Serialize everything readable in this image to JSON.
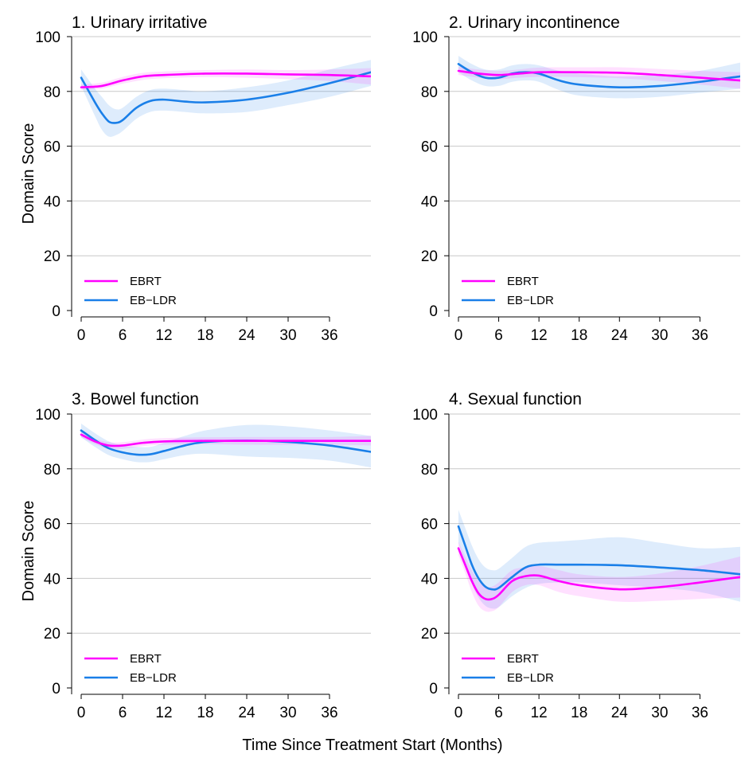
{
  "chart_data": [
    {
      "type": "line",
      "title": "1. Urinary irritative",
      "ylabel": "Domain Score",
      "xlabel": "",
      "ylim": [
        0,
        100
      ],
      "xlim": [
        0,
        42
      ],
      "xticks": [
        0,
        6,
        12,
        18,
        24,
        30,
        36
      ],
      "yticks": [
        0,
        20,
        40,
        60,
        80,
        100
      ],
      "grid": true,
      "legend_position": "bottom-left",
      "series": [
        {
          "name": "EBRT",
          "color": "#ff00ff",
          "x": [
            0,
            3,
            6,
            9,
            12,
            18,
            24,
            30,
            36,
            42
          ],
          "y": [
            81.5,
            82,
            84,
            85.5,
            86,
            86.5,
            86.5,
            86.2,
            86,
            85.5
          ],
          "lower": [
            80.5,
            81,
            82.8,
            84.2,
            84.8,
            85.2,
            85,
            84.5,
            83.8,
            82.5
          ],
          "upper": [
            82.5,
            83.2,
            85.3,
            86.8,
            87.3,
            87.8,
            88,
            87.8,
            88,
            88.5
          ]
        },
        {
          "name": "EB−LDR",
          "color": "#1a7fe8",
          "x": [
            0,
            2,
            3,
            4,
            5,
            6,
            8,
            10,
            12,
            15,
            18,
            24,
            30,
            36,
            42
          ],
          "y": [
            85,
            76,
            72,
            69,
            68.5,
            69.5,
            74,
            76.5,
            77,
            76.3,
            76,
            77,
            79.5,
            83,
            87
          ],
          "lower": [
            82,
            71,
            66,
            63.5,
            64,
            65.5,
            70,
            72.5,
            73,
            72.5,
            72,
            72.5,
            75,
            78,
            82
          ],
          "upper": [
            88,
            81,
            78,
            75,
            73.5,
            74,
            78,
            80.5,
            81,
            80.5,
            80,
            81.5,
            84,
            88,
            91.5
          ]
        }
      ],
      "legend": [
        "EBRT",
        "EB−LDR"
      ]
    },
    {
      "type": "line",
      "title": "2. Urinary incontinence",
      "ylabel": "",
      "xlabel": "",
      "ylim": [
        0,
        100
      ],
      "xlim": [
        0,
        42
      ],
      "xticks": [
        0,
        6,
        12,
        18,
        24,
        30,
        36
      ],
      "yticks": [
        0,
        20,
        40,
        60,
        80,
        100
      ],
      "grid": true,
      "legend_position": "bottom-left",
      "series": [
        {
          "name": "EBRT",
          "color": "#ff00ff",
          "x": [
            0,
            3,
            6,
            9,
            12,
            18,
            24,
            30,
            36,
            42
          ],
          "y": [
            87.5,
            86.5,
            86,
            86.5,
            87,
            87,
            86.8,
            86,
            85,
            84
          ],
          "lower": [
            86,
            85,
            84.5,
            85,
            85.3,
            85.2,
            84.8,
            83.8,
            82.5,
            81
          ],
          "upper": [
            89,
            88,
            87.5,
            88,
            88.7,
            88.8,
            88.8,
            88.2,
            87.5,
            87
          ]
        },
        {
          "name": "EB−LDR",
          "color": "#1a7fe8",
          "x": [
            0,
            2,
            4,
            6,
            8,
            10,
            12,
            15,
            18,
            24,
            30,
            36,
            42
          ],
          "y": [
            90,
            87,
            85,
            85,
            86.5,
            87,
            86.5,
            84,
            82.5,
            81.5,
            82,
            83.5,
            85.5
          ],
          "lower": [
            87,
            84,
            82,
            82,
            83.5,
            84,
            83.5,
            80.5,
            78.5,
            77.5,
            78,
            79.5,
            81
          ],
          "upper": [
            93,
            90,
            88,
            88,
            89.5,
            90,
            89.5,
            87.5,
            86.5,
            85.5,
            86,
            87.5,
            90.5
          ]
        }
      ],
      "legend": [
        "EBRT",
        "EB−LDR"
      ]
    },
    {
      "type": "line",
      "title": "3. Bowel function",
      "ylabel": "Domain Score",
      "xlabel": "",
      "ylim": [
        0,
        100
      ],
      "xlim": [
        0,
        42
      ],
      "xticks": [
        0,
        6,
        12,
        18,
        24,
        30,
        36
      ],
      "yticks": [
        0,
        20,
        40,
        60,
        80,
        100
      ],
      "grid": true,
      "legend_position": "bottom-left",
      "series": [
        {
          "name": "EBRT",
          "color": "#ff00ff",
          "x": [
            0,
            2,
            4,
            6,
            9,
            12,
            18,
            24,
            30,
            36,
            42
          ],
          "y": [
            92.5,
            90,
            88.5,
            88.5,
            89.5,
            90,
            90.2,
            90.2,
            90.2,
            90.2,
            90.2
          ],
          "lower": [
            91.5,
            89,
            87.3,
            87.3,
            88.3,
            88.8,
            89,
            88.8,
            88.8,
            88.8,
            88.5
          ],
          "upper": [
            93.5,
            91,
            89.7,
            89.7,
            90.7,
            91.2,
            91.5,
            91.6,
            91.6,
            91.6,
            92
          ]
        },
        {
          "name": "EB−LDR",
          "color": "#1a7fe8",
          "x": [
            0,
            2,
            4,
            6,
            8,
            10,
            12,
            15,
            18,
            24,
            30,
            36,
            42
          ],
          "y": [
            94,
            90.5,
            87.5,
            86,
            85.2,
            85.3,
            86.5,
            88.5,
            89.8,
            90.3,
            89.8,
            88.5,
            86.2
          ],
          "lower": [
            91.5,
            88,
            85,
            83.5,
            82.5,
            82.5,
            83.5,
            85,
            85.5,
            84.5,
            84,
            83,
            80.5
          ],
          "upper": [
            96.5,
            93,
            90,
            88.5,
            88,
            88,
            89.5,
            92,
            94,
            96,
            95.5,
            94,
            92
          ]
        }
      ],
      "legend": [
        "EBRT",
        "EB−LDR"
      ]
    },
    {
      "type": "line",
      "title": "4. Sexual function",
      "ylabel": "",
      "xlabel": "",
      "ylim": [
        0,
        100
      ],
      "xlim": [
        0,
        42
      ],
      "xticks": [
        0,
        6,
        12,
        18,
        24,
        30,
        36
      ],
      "yticks": [
        0,
        20,
        40,
        60,
        80,
        100
      ],
      "grid": true,
      "legend_position": "bottom-left",
      "series": [
        {
          "name": "EBRT",
          "color": "#ff00ff",
          "x": [
            0,
            1,
            2,
            3,
            4,
            5,
            6,
            8,
            10,
            12,
            15,
            18,
            24,
            30,
            36,
            42
          ],
          "y": [
            51,
            45,
            39,
            34.5,
            32.5,
            32.5,
            34,
            39,
            40.8,
            41,
            39,
            37.5,
            36,
            36.8,
            38.5,
            40.5
          ],
          "lower": [
            48.5,
            42,
            35,
            30,
            28,
            28,
            29.5,
            35,
            37.5,
            37.5,
            35,
            33.5,
            31.5,
            31.8,
            32.5,
            33
          ],
          "upper": [
            53.5,
            48,
            43,
            39,
            37,
            37,
            38.5,
            43,
            44,
            44.5,
            43,
            41.5,
            40.5,
            41.8,
            44.5,
            48
          ]
        },
        {
          "name": "EB−LDR",
          "color": "#1a7fe8",
          "x": [
            0,
            1,
            2,
            3,
            4,
            5,
            6,
            8,
            10,
            12,
            15,
            18,
            24,
            30,
            36,
            42
          ],
          "y": [
            59,
            52,
            45,
            40,
            37,
            36,
            36.5,
            40.5,
            44,
            45,
            45,
            45,
            44.8,
            44,
            43,
            41.5
          ],
          "lower": [
            53,
            45.5,
            38,
            33,
            30,
            29,
            29.5,
            33.5,
            36.5,
            38,
            38.5,
            38.5,
            37.5,
            36.5,
            35,
            31.5
          ],
          "upper": [
            65,
            58.5,
            52,
            47,
            44,
            43,
            43.5,
            47.5,
            51.5,
            53,
            53.5,
            54,
            55,
            53,
            51,
            51.5
          ]
        }
      ],
      "legend": [
        "EBRT",
        "EB−LDR"
      ]
    }
  ],
  "shared": {
    "xlabel": "Time Since Treatment Start (Months)"
  }
}
